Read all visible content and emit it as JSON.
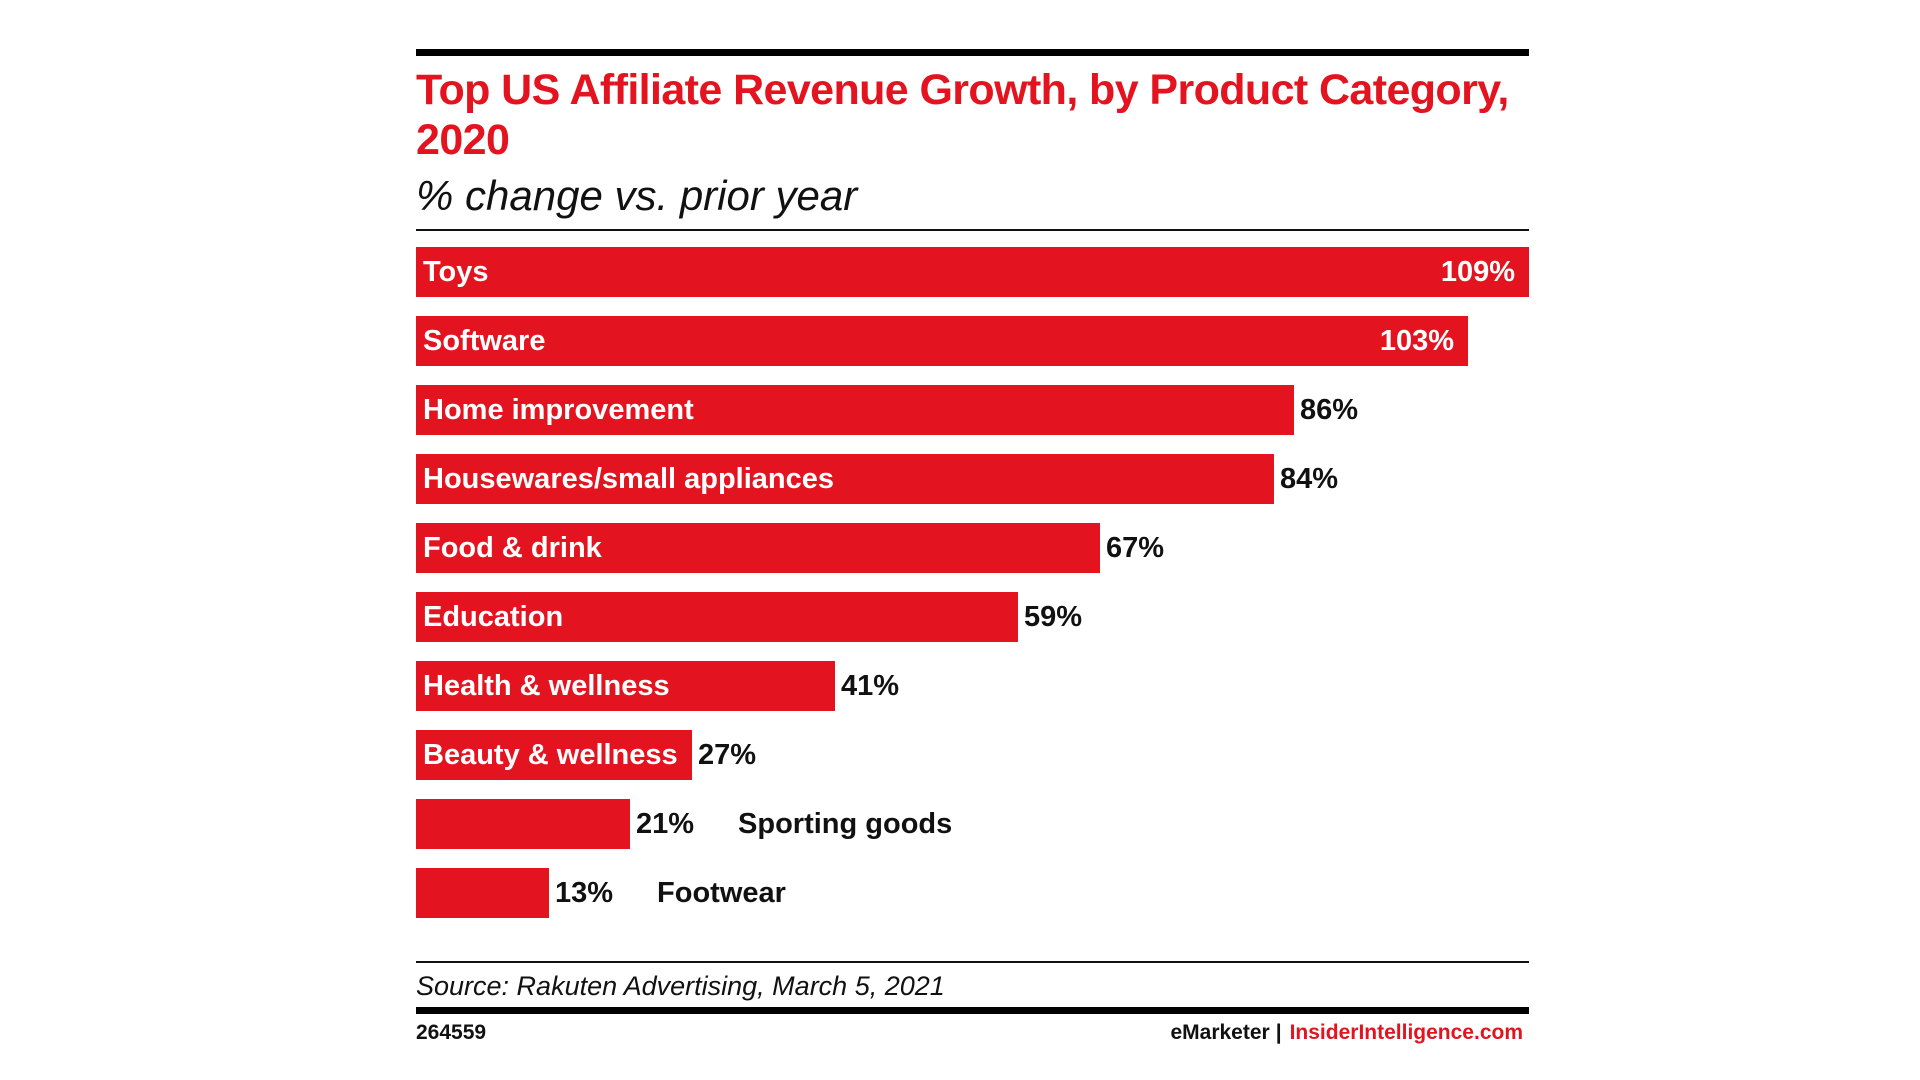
{
  "title": "Top US Affiliate Revenue Growth, by Product Category, 2020",
  "subtitle": "% change vs. prior year",
  "source": "Source: Rakuten Advertising, March 5, 2021",
  "chart_id": "264559",
  "brand": {
    "emarketer": "eMarketer",
    "separator": "|",
    "insider": "InsiderIntelligence.com"
  },
  "colors": {
    "accent": "#e3141f",
    "text": "#111111",
    "rule": "#000000"
  },
  "chart_data": {
    "type": "bar",
    "orientation": "horizontal",
    "title": "Top US Affiliate Revenue Growth, by Product Category, 2020",
    "subtitle": "% change vs. prior year",
    "unit": "%",
    "xlim": [
      0,
      109
    ],
    "categories": [
      "Toys",
      "Software",
      "Home improvement",
      "Housewares/small appliances",
      "Food & drink",
      "Education",
      "Health & wellness",
      "Beauty & wellness",
      "Sporting goods",
      "Footwear"
    ],
    "values": [
      109,
      103,
      86,
      84,
      67,
      59,
      41,
      27,
      21,
      13
    ],
    "value_labels": [
      "109%",
      "103%",
      "86%",
      "84%",
      "67%",
      "59%",
      "41%",
      "27%",
      "21%",
      "13%"
    ]
  }
}
